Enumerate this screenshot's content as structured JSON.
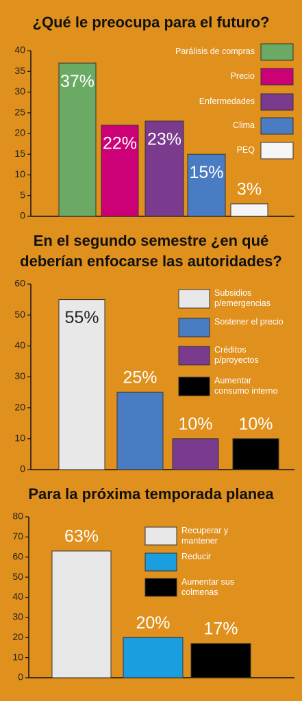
{
  "chart_data": [
    {
      "type": "bar",
      "title": "¿Qué le preocupa para el futuro?",
      "categories": [
        "Parálisis de compras",
        "Precio",
        "Enfermedades",
        "Clima",
        "PEQ"
      ],
      "values": [
        37,
        22,
        23,
        15,
        3
      ],
      "value_labels": [
        "37%",
        "22%",
        "23%",
        "15%",
        "3%"
      ],
      "colors": [
        "#6aaa64",
        "#cc0077",
        "#7a3a8e",
        "#4a7cc4",
        "#f5f5f5"
      ],
      "ylim": [
        0,
        40
      ],
      "yticks": [
        0,
        5,
        10,
        15,
        20,
        25,
        30,
        35,
        40
      ]
    },
    {
      "type": "bar",
      "title": "En el segundo semestre ¿en qué deberían enfocarse las autoridades?",
      "categories": [
        "Subsidios p/emergencias",
        "Sostener el precio",
        "Créditos p/proyectos",
        "Aumentar consumo interno"
      ],
      "values": [
        55,
        25,
        10,
        10
      ],
      "value_labels": [
        "55%",
        "25%",
        "10%",
        "10%"
      ],
      "colors": [
        "#e8e8e8",
        "#4a7cc4",
        "#7a3a8e",
        "#000000"
      ],
      "ylim": [
        0,
        60
      ],
      "yticks": [
        0,
        10,
        20,
        30,
        40,
        50,
        60
      ]
    },
    {
      "type": "bar",
      "title": "Para la próxima temporada planea",
      "categories": [
        "Recuperar y mantener",
        "Reducir",
        "Aumentar sus colmenas"
      ],
      "values": [
        63,
        20,
        17
      ],
      "value_labels": [
        "63%",
        "20%",
        "17%"
      ],
      "colors": [
        "#e8e8e8",
        "#1a9ee0",
        "#000000"
      ],
      "ylim": [
        0,
        80
      ],
      "yticks": [
        0,
        10,
        20,
        30,
        40,
        50,
        60,
        70,
        80
      ]
    }
  ]
}
